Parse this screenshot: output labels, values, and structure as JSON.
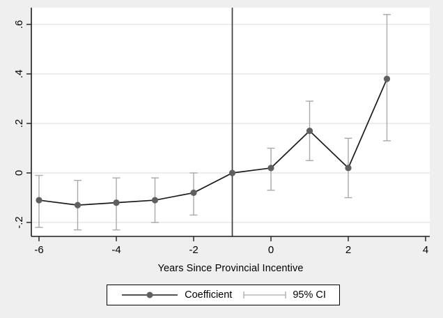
{
  "figure": {
    "background_color": "#efefef",
    "plot_background_color": "#ffffff"
  },
  "chart_data": {
    "type": "line",
    "title": "",
    "xlabel": "Years Since Provincial Incentive",
    "ylabel": "",
    "xlim": [
      -6.2,
      4.1
    ],
    "ylim": [
      -0.256,
      0.668
    ],
    "grid": true,
    "x_ticks": [
      {
        "value": -6,
        "label": "-6"
      },
      {
        "value": -4,
        "label": "-4"
      },
      {
        "value": -2,
        "label": "-2"
      },
      {
        "value": 0,
        "label": "0"
      },
      {
        "value": 2,
        "label": "2"
      },
      {
        "value": 4,
        "label": "4"
      }
    ],
    "y_ticks": [
      {
        "value": -0.2,
        "label": "-.2"
      },
      {
        "value": 0,
        "label": "0"
      },
      {
        "value": 0.2,
        "label": ".2"
      },
      {
        "value": 0.4,
        "label": ".4"
      },
      {
        "value": 0.6,
        "label": ".6"
      }
    ],
    "reference_line_x": -1,
    "series": [
      {
        "name": "Coefficient",
        "points": [
          {
            "x": -6,
            "coef": -0.11,
            "ci_low": -0.22,
            "ci_high": -0.01
          },
          {
            "x": -5,
            "coef": -0.13,
            "ci_low": -0.23,
            "ci_high": -0.03
          },
          {
            "x": -4,
            "coef": -0.12,
            "ci_low": -0.23,
            "ci_high": -0.02
          },
          {
            "x": -3,
            "coef": -0.11,
            "ci_low": -0.2,
            "ci_high": -0.02
          },
          {
            "x": -2,
            "coef": -0.08,
            "ci_low": -0.17,
            "ci_high": 0.0
          },
          {
            "x": -1,
            "coef": 0.0,
            "ci_low": null,
            "ci_high": null
          },
          {
            "x": 0,
            "coef": 0.02,
            "ci_low": -0.07,
            "ci_high": 0.1
          },
          {
            "x": 1,
            "coef": 0.17,
            "ci_low": 0.05,
            "ci_high": 0.29
          },
          {
            "x": 2,
            "coef": 0.02,
            "ci_low": -0.1,
            "ci_high": 0.14
          },
          {
            "x": 3,
            "coef": 0.38,
            "ci_low": 0.13,
            "ci_high": 0.64
          }
        ]
      }
    ],
    "legend": {
      "position": "bottom",
      "entries": [
        {
          "label": "Coefficient",
          "sample": "line-with-marker"
        },
        {
          "label": "95% CI",
          "sample": "error-bar"
        }
      ]
    },
    "colors": {
      "line": "#1a1a1a",
      "marker": "#5f5f5f",
      "ci": "#a9a9a9",
      "gridline": "#e7e7e7",
      "axis": "#1c1c1c",
      "reference_line": "#3d3d3d",
      "text": "#000000"
    }
  }
}
